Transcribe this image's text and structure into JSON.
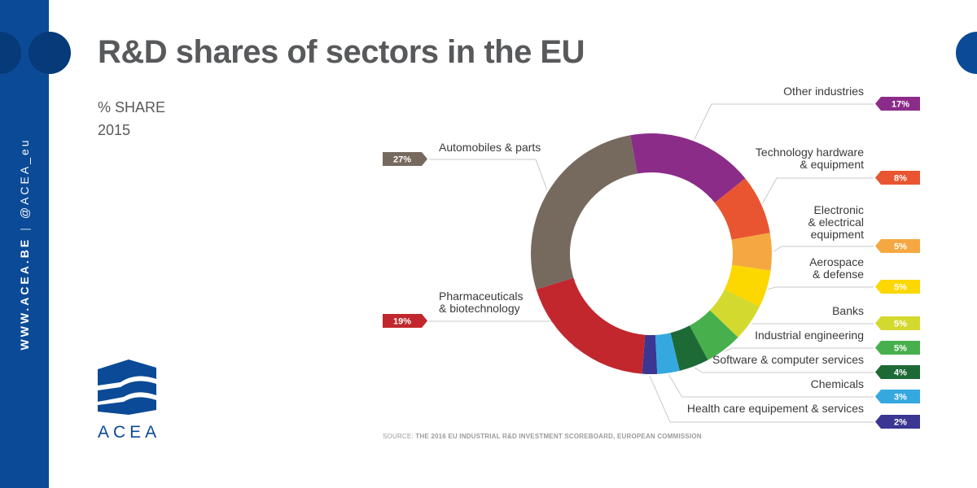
{
  "header": {
    "title": "R&D shares of sectors in the EU",
    "subtitle_line1": "% SHARE",
    "subtitle_line2": "2015"
  },
  "sidebar": {
    "website": "WWW.ACEA.BE",
    "separator": "|",
    "handle": "@ACEA_eu",
    "background_color": "#0b4a96"
  },
  "logo": {
    "text": "ACEA"
  },
  "source": {
    "prefix": "SOURCE:",
    "text": "THE 2016 EU INDUSTRIAL R&D INVESTMENT SCOREBOARD, EUROPEAN COMMISSION"
  },
  "chart_data": {
    "type": "pie",
    "donut": true,
    "title": "R&D shares of sectors in the EU",
    "unit": "%",
    "slices": [
      {
        "key": "other",
        "label": "Other industries",
        "value": 17,
        "value_label": "17%",
        "color": "#8c2c89"
      },
      {
        "key": "techhw",
        "label": "Technology hardware\n& equipment",
        "value": 8,
        "value_label": "8%",
        "color": "#e85530"
      },
      {
        "key": "electronic",
        "label": "Electronic\n& electrical\nequipment",
        "value": 5,
        "value_label": "5%",
        "color": "#f5a841"
      },
      {
        "key": "aerospace",
        "label": "Aerospace\n& defense",
        "value": 5,
        "value_label": "5%",
        "color": "#fcd700"
      },
      {
        "key": "banks",
        "label": "Banks",
        "value": 5,
        "value_label": "5%",
        "color": "#d4d92f"
      },
      {
        "key": "industrial",
        "label": "Industrial engineering",
        "value": 5,
        "value_label": "5%",
        "color": "#47b04d"
      },
      {
        "key": "software",
        "label": "Software & computer services",
        "value": 4,
        "value_label": "4%",
        "color": "#1d6a36"
      },
      {
        "key": "chemicals",
        "label": "Chemicals",
        "value": 3,
        "value_label": "3%",
        "color": "#35a8e0"
      },
      {
        "key": "healthcare",
        "label": "Health care equipement & services",
        "value": 2,
        "value_label": "2%",
        "color": "#3a3691"
      },
      {
        "key": "pharma",
        "label": "Pharmaceuticals\n& biotechnology",
        "value": 19,
        "value_label": "19%",
        "color": "#c1272d"
      },
      {
        "key": "auto",
        "label": "Automobiles & parts",
        "value": 27,
        "value_label": "27%",
        "color": "#766a5e"
      }
    ]
  }
}
